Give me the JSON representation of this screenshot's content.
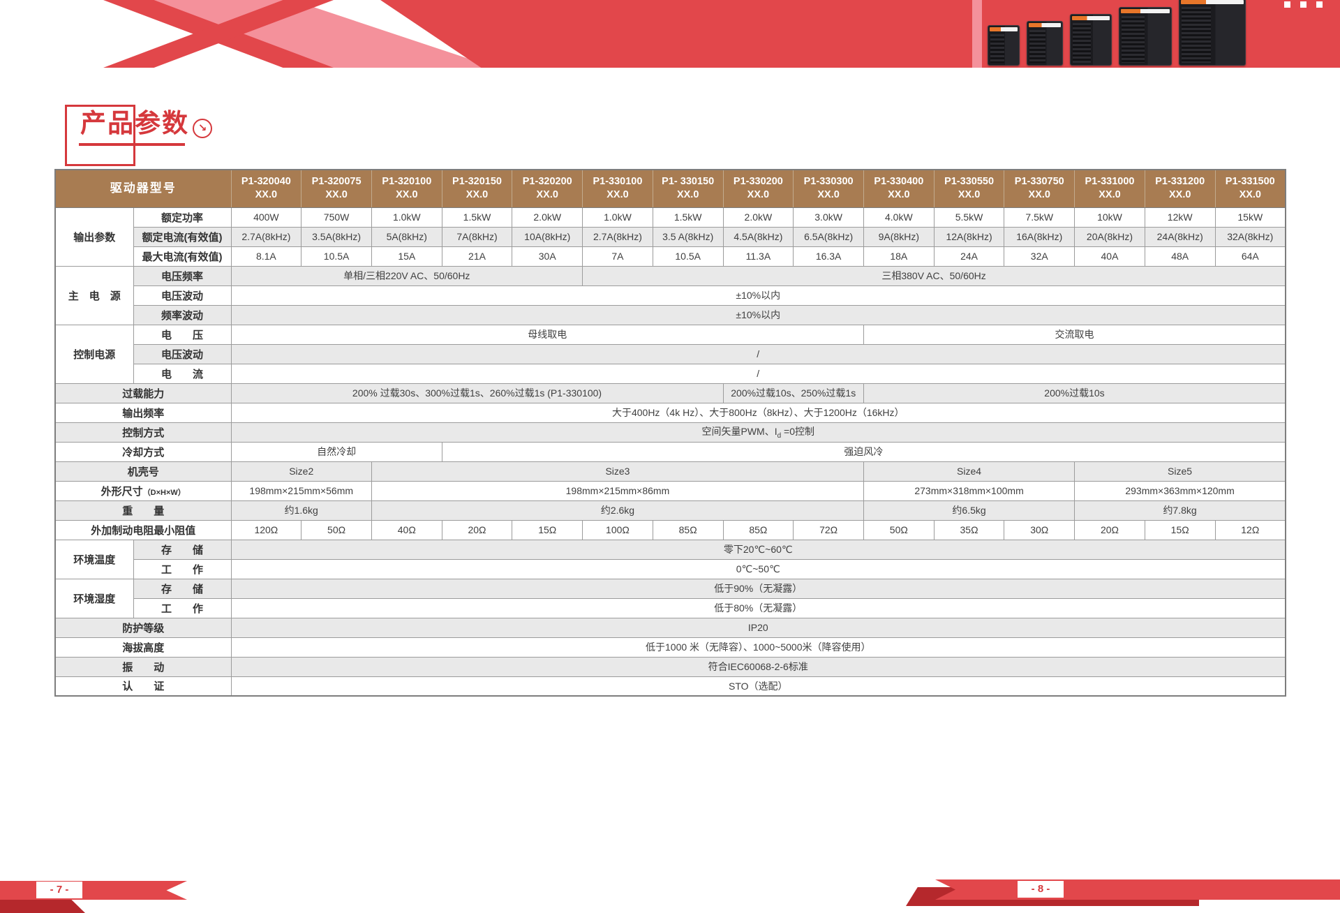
{
  "page": {
    "footer_left": "- 7 -",
    "footer_right": "- 8 -"
  },
  "title": {
    "text": "产品参数",
    "arrow_icon": "↘"
  },
  "colors": {
    "banner_red": "#e2474b",
    "banner_pink": "#f4919b",
    "dark_red": "#b5282c",
    "title_red": "#d5383c",
    "header_brown": "#a87c52",
    "row_gray": "#e9e9e9",
    "border_gray": "#9b9b9b",
    "text": "#3f3f3f"
  },
  "table": {
    "corner_label": "驱动器型号",
    "model_suffix": "XX.0",
    "models": [
      "P1-320040",
      "P1-320075",
      "P1-320100",
      "P1-320150",
      "P1-320200",
      "P1-330100",
      "P1- 330150",
      "P1-330200",
      "P1-330300",
      "P1-330400",
      "P1-330550",
      "P1-330750",
      "P1-331000",
      "P1-331200",
      "P1-331500"
    ],
    "rows": [
      {
        "group": {
          "text": "输出参数",
          "span": 3
        },
        "label": "额定功率",
        "cells": [
          "400W",
          "750W",
          "1.0kW",
          "1.5kW",
          "2.0kW",
          "1.0kW",
          "1.5kW",
          "2.0kW",
          "3.0kW",
          "4.0kW",
          "5.5kW",
          "7.5kW",
          "10kW",
          "12kW",
          "15kW"
        ]
      },
      {
        "label": "额定电流(有效值)",
        "cells": [
          "2.7A(8kHz)",
          "3.5A(8kHz)",
          "5A(8kHz)",
          "7A(8kHz)",
          "10A(8kHz)",
          "2.7A(8kHz)",
          "3.5 A(8kHz)",
          "4.5A(8kHz)",
          "6.5A(8kHz)",
          "9A(8kHz)",
          "12A(8kHz)",
          "16A(8kHz)",
          "20A(8kHz)",
          "24A(8kHz)",
          "32A(8kHz)"
        ]
      },
      {
        "label": "最大电流(有效值)",
        "cells": [
          "8.1A",
          "10.5A",
          "15A",
          "21A",
          "30A",
          "7A",
          "10.5A",
          "11.3A",
          "16.3A",
          "18A",
          "24A",
          "32A",
          "40A",
          "48A",
          "64A"
        ]
      },
      {
        "group": {
          "text": "主　电　源",
          "span": 3
        },
        "label": "电压频率",
        "cells": [
          {
            "t": "单相/三相220V AC、50/60Hz",
            "s": 5
          },
          {
            "t": "三相380V AC、50/60Hz",
            "s": 10
          }
        ]
      },
      {
        "label": "电压波动",
        "cells": [
          {
            "t": "±10%以内",
            "s": 15
          }
        ]
      },
      {
        "label": "频率波动",
        "cells": [
          {
            "t": "±10%以内",
            "s": 15
          }
        ]
      },
      {
        "group": {
          "text": "控制电源",
          "span": 3
        },
        "label": "电　　压",
        "cells": [
          {
            "t": "母线取电",
            "s": 9
          },
          {
            "t": "交流取电",
            "s": 6
          }
        ]
      },
      {
        "label": "电压波动",
        "cells": [
          {
            "t": "/",
            "s": 15
          }
        ]
      },
      {
        "label": "电　　流",
        "cells": [
          {
            "t": "/",
            "s": 15
          }
        ]
      },
      {
        "label": "过载能力",
        "span2": true,
        "cells": [
          {
            "t": "200% 过载30s、300%过载1s、260%过载1s (P1-330100)",
            "s": 7
          },
          {
            "t": "200%过载10s、250%过载1s",
            "s": 2
          },
          {
            "t": "200%过载10s",
            "s": 6
          }
        ]
      },
      {
        "label": "输出频率",
        "span2": true,
        "cells": [
          {
            "t": "大于400Hz（4k Hz）、大于800Hz（8kHz）、大于1200Hz（16kHz）",
            "s": 15
          }
        ]
      },
      {
        "label": "控制方式",
        "span2": true,
        "cells": [
          {
            "pre": "空间矢量PWM、I",
            "sub": "d",
            "post": " =0控制",
            "s": 15
          }
        ]
      },
      {
        "label": "冷却方式",
        "span2": true,
        "cells": [
          {
            "t": "自然冷却",
            "s": 3
          },
          {
            "t": "强迫风冷",
            "s": 12
          }
        ]
      },
      {
        "label": "机壳号",
        "span2": true,
        "cells": [
          {
            "t": "Size2",
            "s": 2
          },
          {
            "t": "Size3",
            "s": 7
          },
          {
            "t": "Size4",
            "s": 3
          },
          {
            "t": "Size5",
            "s": 3
          }
        ]
      },
      {
        "label": "外形尺寸",
        "label_small": "（D×H×W）",
        "span2": true,
        "cells": [
          {
            "t": "198mm×215mm×56mm",
            "s": 2
          },
          {
            "t": "198mm×215mm×86mm",
            "s": 7
          },
          {
            "t": "273mm×318mm×100mm",
            "s": 3
          },
          {
            "t": "293mm×363mm×120mm",
            "s": 3
          }
        ]
      },
      {
        "label": "重　　量",
        "span2": true,
        "cells": [
          {
            "t": "约1.6kg",
            "s": 2
          },
          {
            "t": "约2.6kg",
            "s": 7
          },
          {
            "t": "约6.5kg",
            "s": 3
          },
          {
            "t": "约7.8kg",
            "s": 3
          }
        ]
      },
      {
        "label": "外加制动电阻最小阻值",
        "span2": true,
        "cells": [
          "120Ω",
          "50Ω",
          "40Ω",
          "20Ω",
          "15Ω",
          "100Ω",
          "85Ω",
          "85Ω",
          "72Ω",
          "50Ω",
          "35Ω",
          "30Ω",
          "20Ω",
          "15Ω",
          "12Ω"
        ]
      },
      {
        "group": {
          "text": "环境温度",
          "span": 2
        },
        "label": "存　　储",
        "cells": [
          {
            "t": "零下20℃~60℃",
            "s": 15
          }
        ]
      },
      {
        "label": "工　　作",
        "cells": [
          {
            "t": "0℃~50℃",
            "s": 15
          }
        ]
      },
      {
        "group": {
          "text": "环境湿度",
          "span": 2
        },
        "label": "存　　储",
        "cells": [
          {
            "t": "低于90%（无凝露）",
            "s": 15
          }
        ]
      },
      {
        "label": "工　　作",
        "cells": [
          {
            "t": "低于80%（无凝露）",
            "s": 15
          }
        ]
      },
      {
        "label": "防护等级",
        "span2": true,
        "cells": [
          {
            "t": "IP20",
            "s": 15
          }
        ]
      },
      {
        "label": "海拔高度",
        "span2": true,
        "cells": [
          {
            "t": "低于1000 米（无降容）、1000~5000米（降容使用）",
            "s": 15
          }
        ]
      },
      {
        "label": "振　　动",
        "span2": true,
        "cells": [
          {
            "t": "符合IEC60068-2-6标准",
            "s": 15
          }
        ]
      },
      {
        "label": "认　　证",
        "span2": true,
        "cells": [
          {
            "t": "STO（选配）",
            "s": 15
          }
        ]
      }
    ]
  }
}
